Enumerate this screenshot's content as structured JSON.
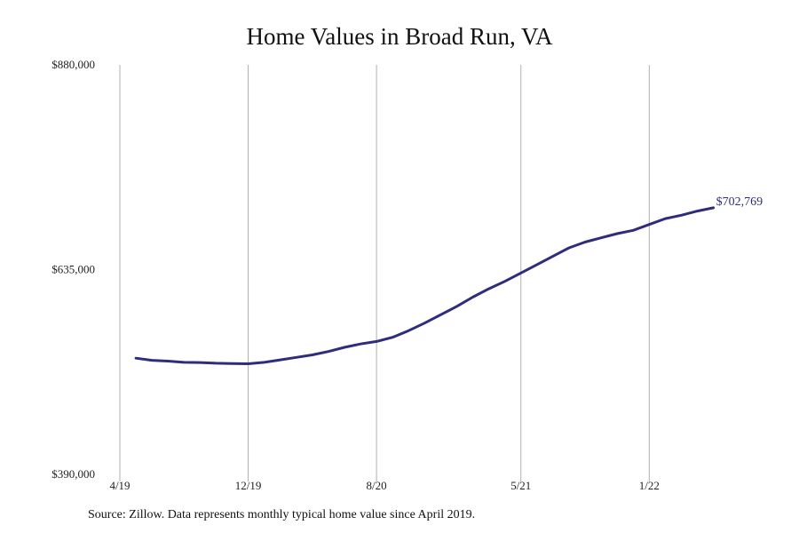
{
  "chart_data": {
    "type": "line",
    "title": "Home Values in Broad Run, VA",
    "note": "Source: Zillow. Data represents monthly typical home value since April 2019.",
    "xlabel": "",
    "ylabel": "",
    "x_ticks": [
      "4/19",
      "12/19",
      "8/20",
      "5/21",
      "1/22"
    ],
    "y_ticks": [
      "$390,000",
      "$635,000",
      "$880,000"
    ],
    "ylim": [
      390000,
      880000
    ],
    "grid": "vertical lines at x ticks",
    "line_color": "#2e2d7c",
    "end_label": "$702,769",
    "series": [
      {
        "x": [
          "2019-05",
          "2019-06",
          "2019-07",
          "2019-08",
          "2019-09",
          "2019-10",
          "2019-11",
          "2019-12",
          "2020-01",
          "2020-02",
          "2020-03",
          "2020-04",
          "2020-05",
          "2020-06",
          "2020-07",
          "2020-08",
          "2020-09",
          "2020-10",
          "2020-11",
          "2020-12",
          "2021-01",
          "2021-02",
          "2021-03",
          "2021-04",
          "2021-05",
          "2021-06",
          "2021-07",
          "2021-08",
          "2021-09",
          "2021-10",
          "2021-11",
          "2021-12",
          "2022-01",
          "2022-02",
          "2022-03",
          "2022-04",
          "2022-05"
        ],
        "values": [
          529000,
          526500,
          525500,
          524000,
          523800,
          523000,
          522700,
          522300,
          524000,
          527000,
          530000,
          533000,
          537000,
          542000,
          546000,
          549000,
          554000,
          562000,
          571000,
          581000,
          591000,
          602000,
          612000,
          621000,
          631000,
          641000,
          651000,
          661000,
          668000,
          673000,
          678000,
          682000,
          689000,
          696000,
          700000,
          705000,
          709000
        ]
      }
    ]
  }
}
